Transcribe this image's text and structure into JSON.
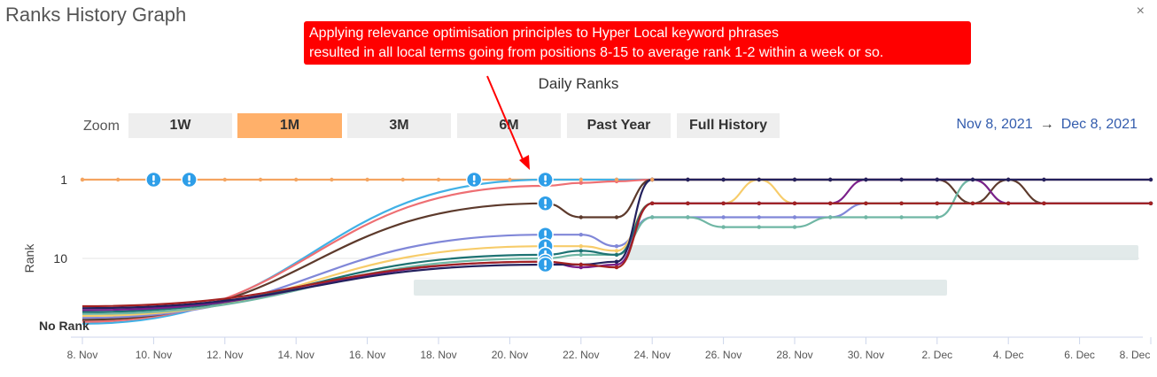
{
  "panel": {
    "title": "Ranks History Graph",
    "close_icon": "close-icon"
  },
  "annotation": {
    "line1": "Applying relevance optimisation principles to Hyper Local keyword phrases",
    "line2": "resulted in all local terms going from positions 8-15 to average rank 1-2 within a week or so.",
    "color": "#ff0000"
  },
  "zoom": {
    "label": "Zoom",
    "buttons": [
      "1W",
      "1M",
      "3M",
      "6M",
      "Past Year",
      "Full History"
    ],
    "active": "1M"
  },
  "date_range": {
    "from": "Nov 8, 2021",
    "arrow": "→",
    "to": "Dec 8, 2021"
  },
  "chart_data": {
    "type": "line",
    "title": "Daily Ranks",
    "ylabel": "Rank",
    "xlabel": "",
    "y_scale": "log",
    "y_ticks": [
      {
        "label": "1",
        "value": 1
      },
      {
        "label": "10",
        "value": 10
      },
      {
        "label": "No Rank",
        "value": "none"
      }
    ],
    "x_ticks": [
      "8. Nov",
      "10. Nov",
      "12. Nov",
      "14. Nov",
      "16. Nov",
      "18. Nov",
      "20. Nov",
      "22. Nov",
      "24. Nov",
      "26. Nov",
      "28. Nov",
      "30. Nov",
      "2. Dec",
      "4. Dec",
      "6. Dec",
      "8. Dec"
    ],
    "x": [
      "Nov 8",
      "Nov 21",
      "Nov 22",
      "Nov 23",
      "Nov 24",
      "Nov 25",
      "Nov 26",
      "Nov 27",
      "Nov 28",
      "Nov 29",
      "Nov 30",
      "Dec 1",
      "Dec 2",
      "Dec 3",
      "Dec 4",
      "Dec 5",
      "Dec 8"
    ],
    "series": [
      {
        "color": "#f4a460",
        "values": [
          1,
          1,
          1,
          1,
          1,
          1,
          1,
          1,
          1,
          1,
          1,
          1,
          1,
          1,
          1,
          1,
          1
        ]
      },
      {
        "color": "#41b1e6",
        "values": [
          "none",
          1,
          1,
          1,
          1,
          1,
          1,
          1,
          1,
          1,
          1,
          1,
          1,
          1,
          1,
          1,
          1
        ]
      },
      {
        "color": "#ee6f73",
        "values": [
          "none",
          1.2,
          1.1,
          1.05,
          1,
          1,
          1,
          1,
          1,
          1,
          1,
          1,
          1,
          1,
          1,
          1,
          1
        ]
      },
      {
        "color": "#5d3a2c",
        "values": [
          "none",
          2,
          3,
          3,
          1,
          1,
          1,
          1,
          1,
          1,
          1,
          1,
          1,
          2,
          1,
          2,
          2
        ]
      },
      {
        "color": "#8087d8",
        "values": [
          "none",
          5,
          5,
          7,
          3,
          3,
          3,
          3,
          3,
          3,
          2,
          2,
          2,
          2,
          2,
          2,
          2
        ]
      },
      {
        "color": "#f7cc6a",
        "values": [
          "none",
          7,
          7,
          8,
          2,
          2,
          2,
          1,
          2,
          2,
          2,
          2,
          2,
          2,
          2,
          2,
          2
        ]
      },
      {
        "color": "#6fb6a4",
        "values": [
          "none",
          10,
          9,
          9,
          3,
          3,
          4,
          4,
          4,
          3,
          3,
          3,
          3,
          1,
          2,
          2,
          2
        ]
      },
      {
        "color": "#1e7373",
        "values": [
          "none",
          9,
          8,
          9,
          2,
          2,
          2,
          2,
          2,
          2,
          2,
          2,
          2,
          2,
          2,
          2,
          2
        ]
      },
      {
        "color": "#7b1f8a",
        "values": [
          "none",
          11,
          13,
          12,
          2,
          2,
          2,
          2,
          2,
          2,
          1,
          1,
          1,
          1,
          2,
          2,
          2
        ]
      },
      {
        "color": "#23215e",
        "values": [
          "none",
          12,
          12,
          11,
          1,
          1,
          1,
          1,
          1,
          1,
          1,
          1,
          1,
          1,
          1,
          1,
          1
        ]
      },
      {
        "color": "#a32222",
        "values": [
          "none",
          11,
          12,
          13,
          2,
          2,
          2,
          2,
          2,
          2,
          2,
          2,
          2,
          2,
          2,
          2,
          2
        ]
      }
    ],
    "flags": [
      {
        "x": "Nov 10",
        "y": 1
      },
      {
        "x": "Nov 11",
        "y": 1
      },
      {
        "x": "Nov 19",
        "y": 1
      },
      {
        "x": "Nov 21",
        "y": 1
      },
      {
        "x": "Nov 21",
        "y": 2
      },
      {
        "x": "Nov 21",
        "y": 5
      },
      {
        "x": "Nov 21",
        "y": 7
      },
      {
        "x": "Nov 21",
        "y": 9
      },
      {
        "x": "Nov 21",
        "y": 11
      },
      {
        "x": "Nov 21",
        "y": 12
      }
    ],
    "legend": "none",
    "grid": true
  }
}
